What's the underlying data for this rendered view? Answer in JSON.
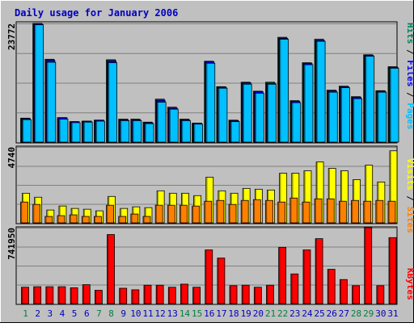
{
  "chart_data": [
    {
      "type": "bar",
      "title": "Daily usage for January 2006",
      "categories": [
        "1",
        "2",
        "3",
        "4",
        "5",
        "6",
        "7",
        "8",
        "9",
        "10",
        "11",
        "12",
        "13",
        "14",
        "15",
        "16",
        "17",
        "18",
        "19",
        "20",
        "21",
        "22",
        "23",
        "24",
        "25",
        "26",
        "27",
        "28",
        "29",
        "30",
        "31"
      ],
      "weekend_days": [
        "1",
        "7",
        "8",
        "14",
        "15",
        "21",
        "22",
        "28",
        "29"
      ],
      "ytick": "23772",
      "ylim": [
        0,
        23772
      ],
      "grid": true,
      "side_label": [
        "Pages",
        "Files",
        "Hits"
      ],
      "series": [
        {
          "name": "Hits",
          "color": "#00805c",
          "values": [
            4800,
            23772,
            16600,
            4900,
            4100,
            4200,
            4400,
            16500,
            4600,
            4600,
            4000,
            8600,
            7000,
            4600,
            3800,
            16200,
            11100,
            4400,
            12000,
            10200,
            12000,
            21000,
            8300,
            15900,
            20600,
            10400,
            11200,
            9100,
            17500,
            10300,
            15100
          ]
        },
        {
          "name": "Files",
          "color": "#0000ff",
          "values": [
            4700,
            23700,
            16400,
            4900,
            4100,
            4200,
            4400,
            16300,
            4500,
            4500,
            3900,
            8400,
            6800,
            4500,
            3800,
            16100,
            11000,
            4300,
            11900,
            10100,
            11800,
            20800,
            8200,
            15800,
            20400,
            10300,
            11100,
            9000,
            17400,
            10200,
            15000
          ]
        },
        {
          "name": "Pages",
          "color": "#00c0ff",
          "values": [
            4500,
            23500,
            16000,
            4600,
            3900,
            4000,
            4200,
            15900,
            4300,
            4300,
            3700,
            8000,
            6600,
            4300,
            3600,
            15800,
            10800,
            4100,
            11600,
            9800,
            11600,
            20600,
            7900,
            15500,
            20200,
            10000,
            10900,
            8700,
            17200,
            10000,
            14800
          ]
        }
      ]
    },
    {
      "type": "bar",
      "categories": [
        "1",
        "2",
        "3",
        "4",
        "5",
        "6",
        "7",
        "8",
        "9",
        "10",
        "11",
        "12",
        "13",
        "14",
        "15",
        "16",
        "17",
        "18",
        "19",
        "20",
        "21",
        "22",
        "23",
        "24",
        "25",
        "26",
        "27",
        "28",
        "29",
        "30",
        "31"
      ],
      "ytick": "4740",
      "ylim": [
        0,
        4740
      ],
      "grid": true,
      "side_label": [
        "Sites",
        "Visits"
      ],
      "series": [
        {
          "name": "Visits",
          "color": "#ffff00",
          "values": [
            1850,
            1600,
            800,
            1050,
            900,
            850,
            750,
            1650,
            900,
            1000,
            950,
            2000,
            1850,
            1850,
            1700,
            2850,
            2000,
            1850,
            2150,
            2100,
            2050,
            3100,
            3100,
            3250,
            3800,
            3400,
            3250,
            2700,
            3600,
            2550,
            4500
          ]
        },
        {
          "name": "Sites",
          "color": "#ff8000",
          "values": [
            1300,
            1150,
            400,
            450,
            500,
            400,
            400,
            1100,
            400,
            550,
            400,
            1100,
            1100,
            1100,
            1050,
            1350,
            1400,
            1150,
            1400,
            1450,
            1400,
            1300,
            1550,
            1300,
            1500,
            1500,
            1350,
            1400,
            1350,
            1400,
            1350
          ]
        }
      ]
    },
    {
      "type": "bar",
      "categories": [
        "1",
        "2",
        "3",
        "4",
        "5",
        "6",
        "7",
        "8",
        "9",
        "10",
        "11",
        "12",
        "13",
        "14",
        "15",
        "16",
        "17",
        "18",
        "19",
        "20",
        "21",
        "22",
        "23",
        "24",
        "25",
        "26",
        "27",
        "28",
        "29",
        "30",
        "31"
      ],
      "ytick": "741950",
      "ylim": [
        0,
        741950
      ],
      "grid": true,
      "side_label": [
        "KBytes"
      ],
      "series": [
        {
          "name": "KBytes",
          "color": "#ff0000",
          "values": [
            160000,
            165000,
            165000,
            165000,
            155000,
            185000,
            130000,
            675000,
            150000,
            135000,
            180000,
            180000,
            160000,
            190000,
            160000,
            525000,
            445000,
            175000,
            180000,
            160000,
            180000,
            550000,
            290000,
            525000,
            635000,
            335000,
            235000,
            175000,
            741950,
            175000,
            645000
          ]
        }
      ]
    }
  ],
  "colors": {
    "panel_bg": "#c0c0c0",
    "title": "#0000c0",
    "weekday_label": "#0000c0",
    "weekend_label": "#008040",
    "grid": "#808080"
  }
}
